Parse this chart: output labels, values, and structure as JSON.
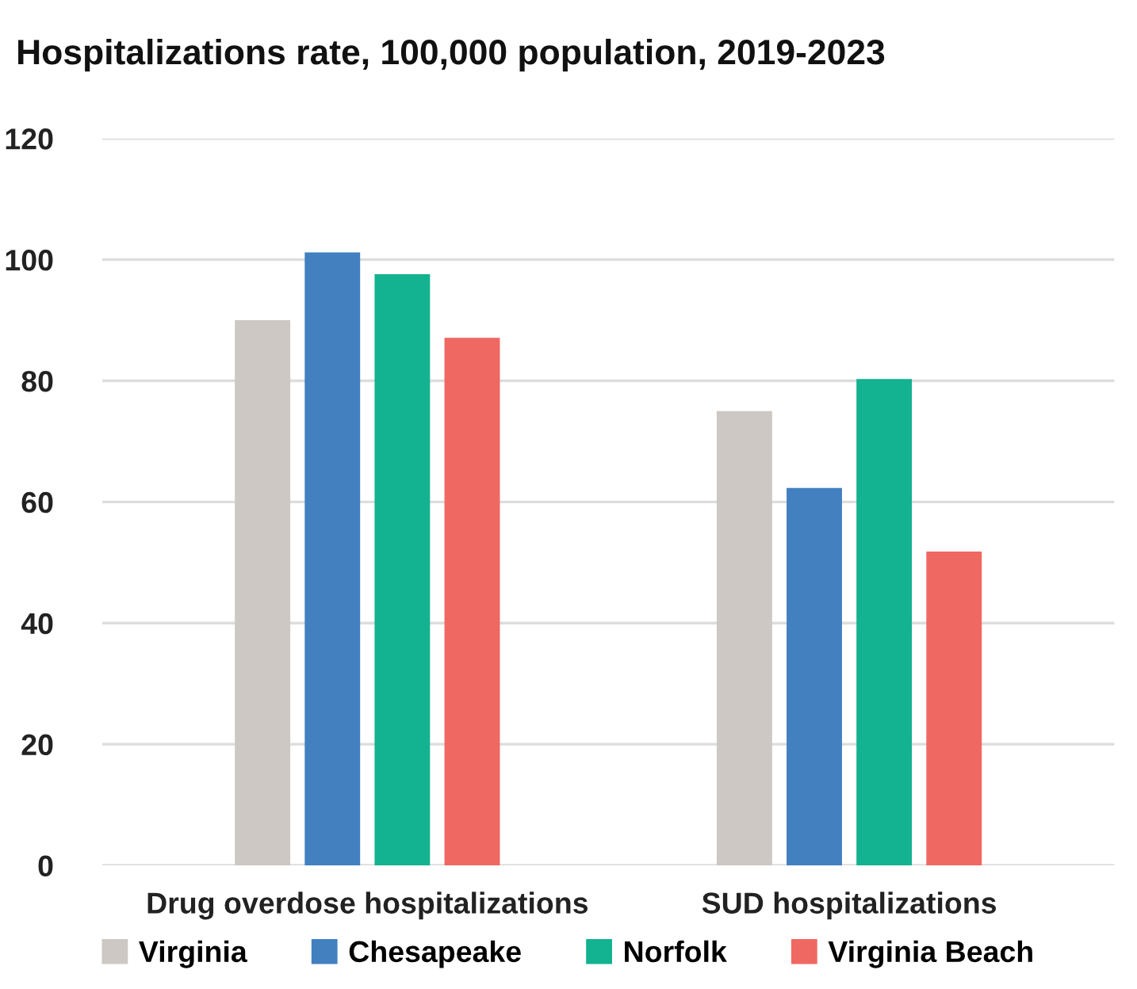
{
  "chart_data": {
    "type": "bar",
    "title": "Hospitalizations rate, 100,000 population, 2019-2023",
    "categories": [
      "Drug overdose hospitalizations",
      "SUD hospitalizations"
    ],
    "series": [
      {
        "name": "Virginia",
        "color": "#cdc8c3",
        "values": [
          90,
          75
        ]
      },
      {
        "name": "Chesapeake",
        "color": "#4280c0",
        "values": [
          101.2,
          62.3
        ]
      },
      {
        "name": "Norfolk",
        "color": "#13b290",
        "values": [
          97.6,
          80.3
        ]
      },
      {
        "name": "Virginia Beach",
        "color": "#f06862",
        "values": [
          87.1,
          51.8
        ]
      }
    ],
    "ylim": [
      0,
      120
    ],
    "yticks": [
      0,
      20,
      40,
      60,
      80,
      100,
      120
    ],
    "grid": "y",
    "legend": "bottom"
  }
}
